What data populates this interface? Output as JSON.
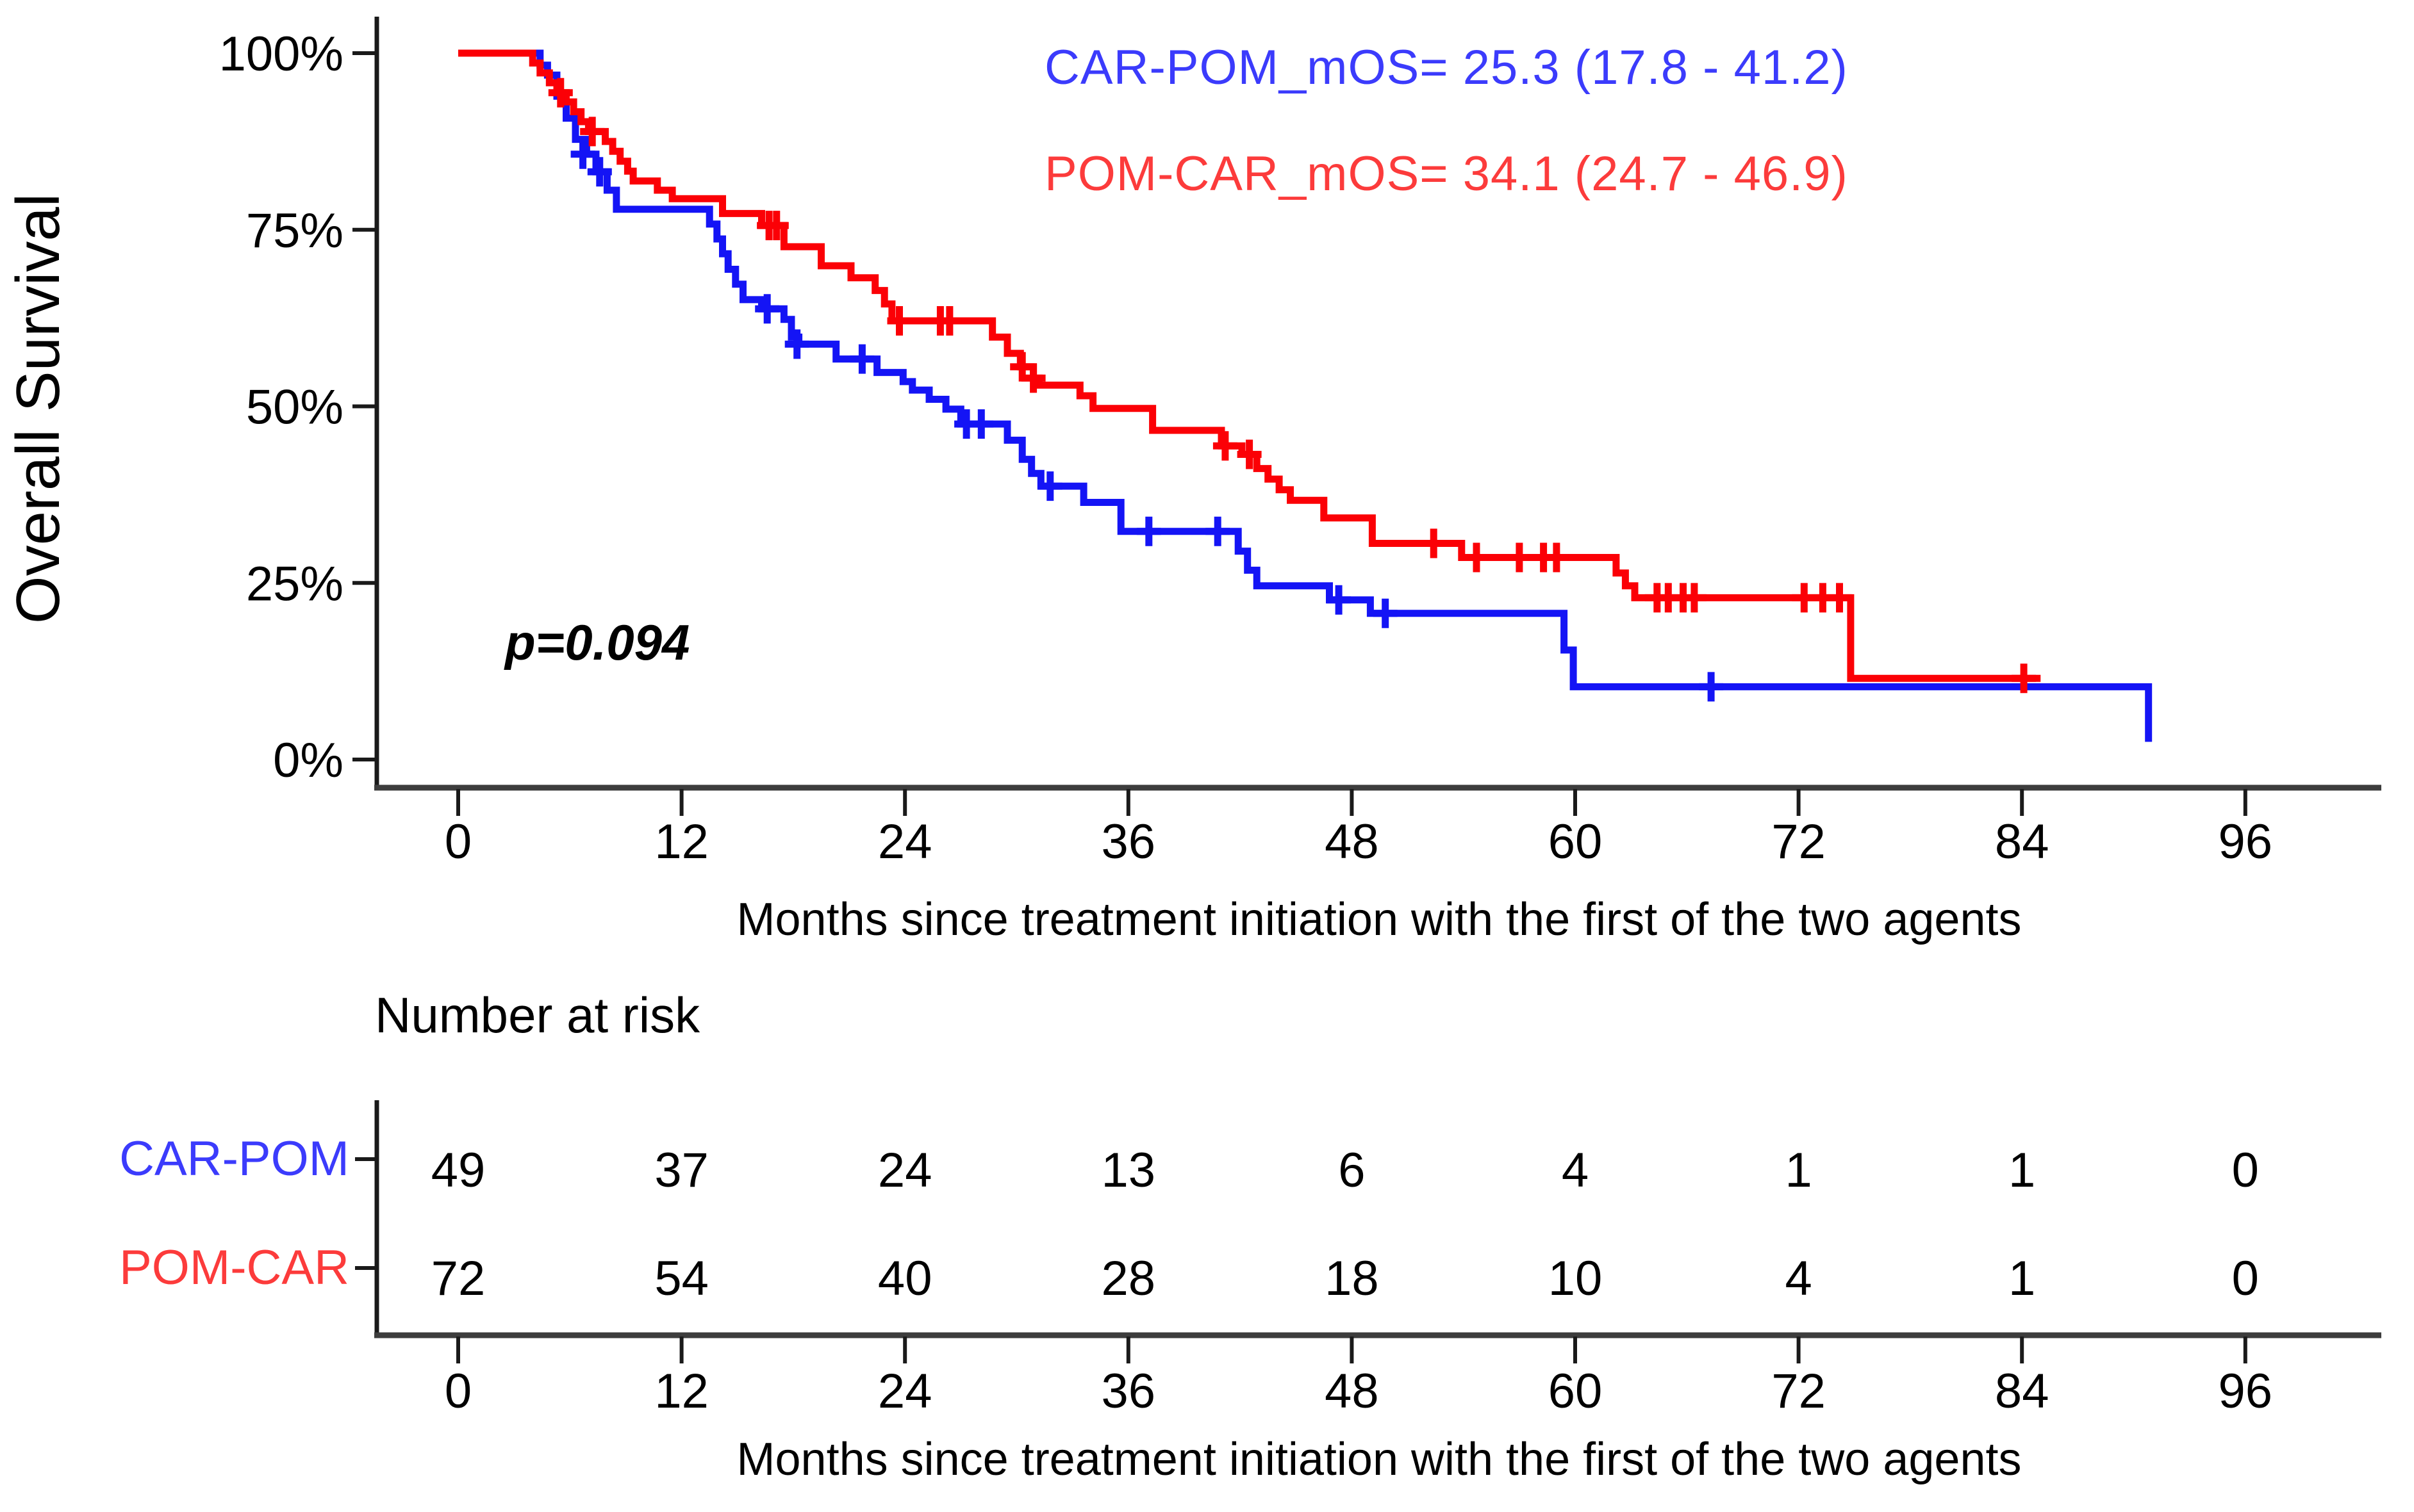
{
  "figure": {
    "p_value": "p=0.094",
    "legend": {
      "items": [
        {
          "label": "CAR-POM_mOS= 25.3 (17.8 - 41.2)",
          "color": "#3b3bfc"
        },
        {
          "label": "POM-CAR_mOS= 34.1 (24.7 - 46.9)",
          "color": "#fc3b3b"
        }
      ]
    }
  },
  "chart_data": {
    "type": "line",
    "subtype": "kaplan_meier_step",
    "title": "",
    "ylabel": "Overall Survival",
    "xlabel": "Months since treatment initiation with the first of the two agents",
    "xlim": [
      0,
      96
    ],
    "ylim": [
      0,
      100
    ],
    "xticks": [
      0,
      12,
      24,
      36,
      48,
      60,
      72,
      84,
      96
    ],
    "yticks": [
      0,
      25,
      50,
      75,
      100
    ],
    "ytick_suffix": "%",
    "grid": false,
    "legend_position": "top-right-inside",
    "annotations": [
      {
        "text": "p=0.094"
      }
    ],
    "series": [
      {
        "name": "CAR-POM",
        "median_os": "25.3 (17.8 - 41.2)",
        "color": "#1414f5",
        "steps": [
          [
            0,
            100
          ],
          [
            4.4,
            98.3
          ],
          [
            4.8,
            96.9
          ],
          [
            5.3,
            93.9
          ],
          [
            5.8,
            90.8
          ],
          [
            6.3,
            87.8
          ],
          [
            6.9,
            85.7
          ],
          [
            7.4,
            83.2
          ],
          [
            8.0,
            80.6
          ],
          [
            8.5,
            77.9
          ],
          [
            13.5,
            75.8
          ],
          [
            13.9,
            73.7
          ],
          [
            14.2,
            71.6
          ],
          [
            14.5,
            69.4
          ],
          [
            14.9,
            67.3
          ],
          [
            15.3,
            65.1
          ],
          [
            16.3,
            63.8
          ],
          [
            17.5,
            62.3
          ],
          [
            17.9,
            59.8
          ],
          [
            18.3,
            58.8
          ],
          [
            20.3,
            56.7
          ],
          [
            22.5,
            54.8
          ],
          [
            23.9,
            53.5
          ],
          [
            24.4,
            52.3
          ],
          [
            25.3,
            51.0
          ],
          [
            26.2,
            49.6
          ],
          [
            27.0,
            47.5
          ],
          [
            29.5,
            45.2
          ],
          [
            30.3,
            42.5
          ],
          [
            30.8,
            40.5
          ],
          [
            31.3,
            38.7
          ],
          [
            33.6,
            36.4
          ],
          [
            35.6,
            32.3
          ],
          [
            41.9,
            29.5
          ],
          [
            42.4,
            26.8
          ],
          [
            42.9,
            24.6
          ],
          [
            46.8,
            22.6
          ],
          [
            49.0,
            20.7
          ],
          [
            59.4,
            15.5
          ],
          [
            59.9,
            10.3
          ],
          [
            90.8,
            2.5
          ]
        ],
        "end_month": 90.8,
        "censor_marks": [
          [
            6.7,
            85.7
          ],
          [
            7.6,
            83.2
          ],
          [
            16.6,
            63.8
          ],
          [
            18.2,
            58.8
          ],
          [
            21.7,
            56.7
          ],
          [
            27.3,
            47.5
          ],
          [
            28.1,
            47.5
          ],
          [
            31.8,
            38.7
          ],
          [
            37.1,
            32.3
          ],
          [
            40.8,
            32.3
          ],
          [
            47.3,
            22.6
          ],
          [
            49.8,
            20.7
          ],
          [
            67.3,
            10.3
          ]
        ]
      },
      {
        "name": "POM-CAR",
        "median_os": "34.1 (24.7 - 46.9)",
        "color": "#fb0006",
        "steps": [
          [
            0,
            100
          ],
          [
            4.0,
            98.6
          ],
          [
            4.4,
            97.2
          ],
          [
            4.9,
            95.8
          ],
          [
            5.3,
            94.4
          ],
          [
            5.8,
            93.1
          ],
          [
            6.2,
            91.7
          ],
          [
            6.6,
            90.3
          ],
          [
            7.0,
            88.9
          ],
          [
            7.9,
            87.5
          ],
          [
            8.3,
            86.1
          ],
          [
            8.7,
            84.7
          ],
          [
            9.1,
            83.3
          ],
          [
            9.4,
            81.9
          ],
          [
            10.7,
            80.6
          ],
          [
            11.5,
            79.4
          ],
          [
            14.2,
            77.3
          ],
          [
            16.3,
            75.6
          ],
          [
            17.5,
            72.6
          ],
          [
            19.5,
            69.9
          ],
          [
            21.1,
            68.2
          ],
          [
            22.4,
            66.4
          ],
          [
            22.9,
            64.5
          ],
          [
            23.3,
            62.1
          ],
          [
            28.7,
            59.8
          ],
          [
            29.5,
            57.5
          ],
          [
            30.2,
            55.6
          ],
          [
            30.9,
            54.0
          ],
          [
            31.2,
            53.0
          ],
          [
            33.4,
            51.5
          ],
          [
            34.1,
            49.7
          ],
          [
            37.3,
            46.6
          ],
          [
            41.0,
            44.4
          ],
          [
            42.1,
            43.2
          ],
          [
            42.9,
            41.2
          ],
          [
            43.5,
            39.7
          ],
          [
            44.1,
            38.2
          ],
          [
            44.7,
            36.7
          ],
          [
            46.5,
            34.2
          ],
          [
            49.1,
            30.6
          ],
          [
            53.9,
            28.6
          ],
          [
            62.2,
            26.4
          ],
          [
            62.7,
            24.6
          ],
          [
            63.2,
            22.9
          ],
          [
            74.8,
            11.5
          ]
        ],
        "end_month": 85.0,
        "censor_marks": [
          [
            5.5,
            94.4
          ],
          [
            7.2,
            88.9
          ],
          [
            16.7,
            75.6
          ],
          [
            17.1,
            75.6
          ],
          [
            23.7,
            62.1
          ],
          [
            25.9,
            62.1
          ],
          [
            26.4,
            62.1
          ],
          [
            30.3,
            55.6
          ],
          [
            30.9,
            54.0
          ],
          [
            41.2,
            44.4
          ],
          [
            42.5,
            43.2
          ],
          [
            52.4,
            30.6
          ],
          [
            54.7,
            28.6
          ],
          [
            57.0,
            28.6
          ],
          [
            58.3,
            28.6
          ],
          [
            59.0,
            28.6
          ],
          [
            64.4,
            22.9
          ],
          [
            65.0,
            22.9
          ],
          [
            65.8,
            22.9
          ],
          [
            66.4,
            22.9
          ],
          [
            72.3,
            22.9
          ],
          [
            73.3,
            22.9
          ],
          [
            74.2,
            22.9
          ],
          [
            84.1,
            11.5
          ]
        ]
      }
    ]
  },
  "risk_table": {
    "title": "Number at risk",
    "xlabel": "Months since treatment initiation with the first of the two agents",
    "xticks": [
      0,
      12,
      24,
      36,
      48,
      60,
      72,
      84,
      96
    ],
    "rows": [
      {
        "label": "CAR-POM",
        "color": "#3b3bfc",
        "values": [
          49,
          37,
          24,
          13,
          6,
          4,
          1,
          1,
          0
        ]
      },
      {
        "label": "POM-CAR",
        "color": "#fc3b3b",
        "values": [
          72,
          54,
          40,
          28,
          18,
          10,
          4,
          1,
          0
        ]
      }
    ]
  }
}
